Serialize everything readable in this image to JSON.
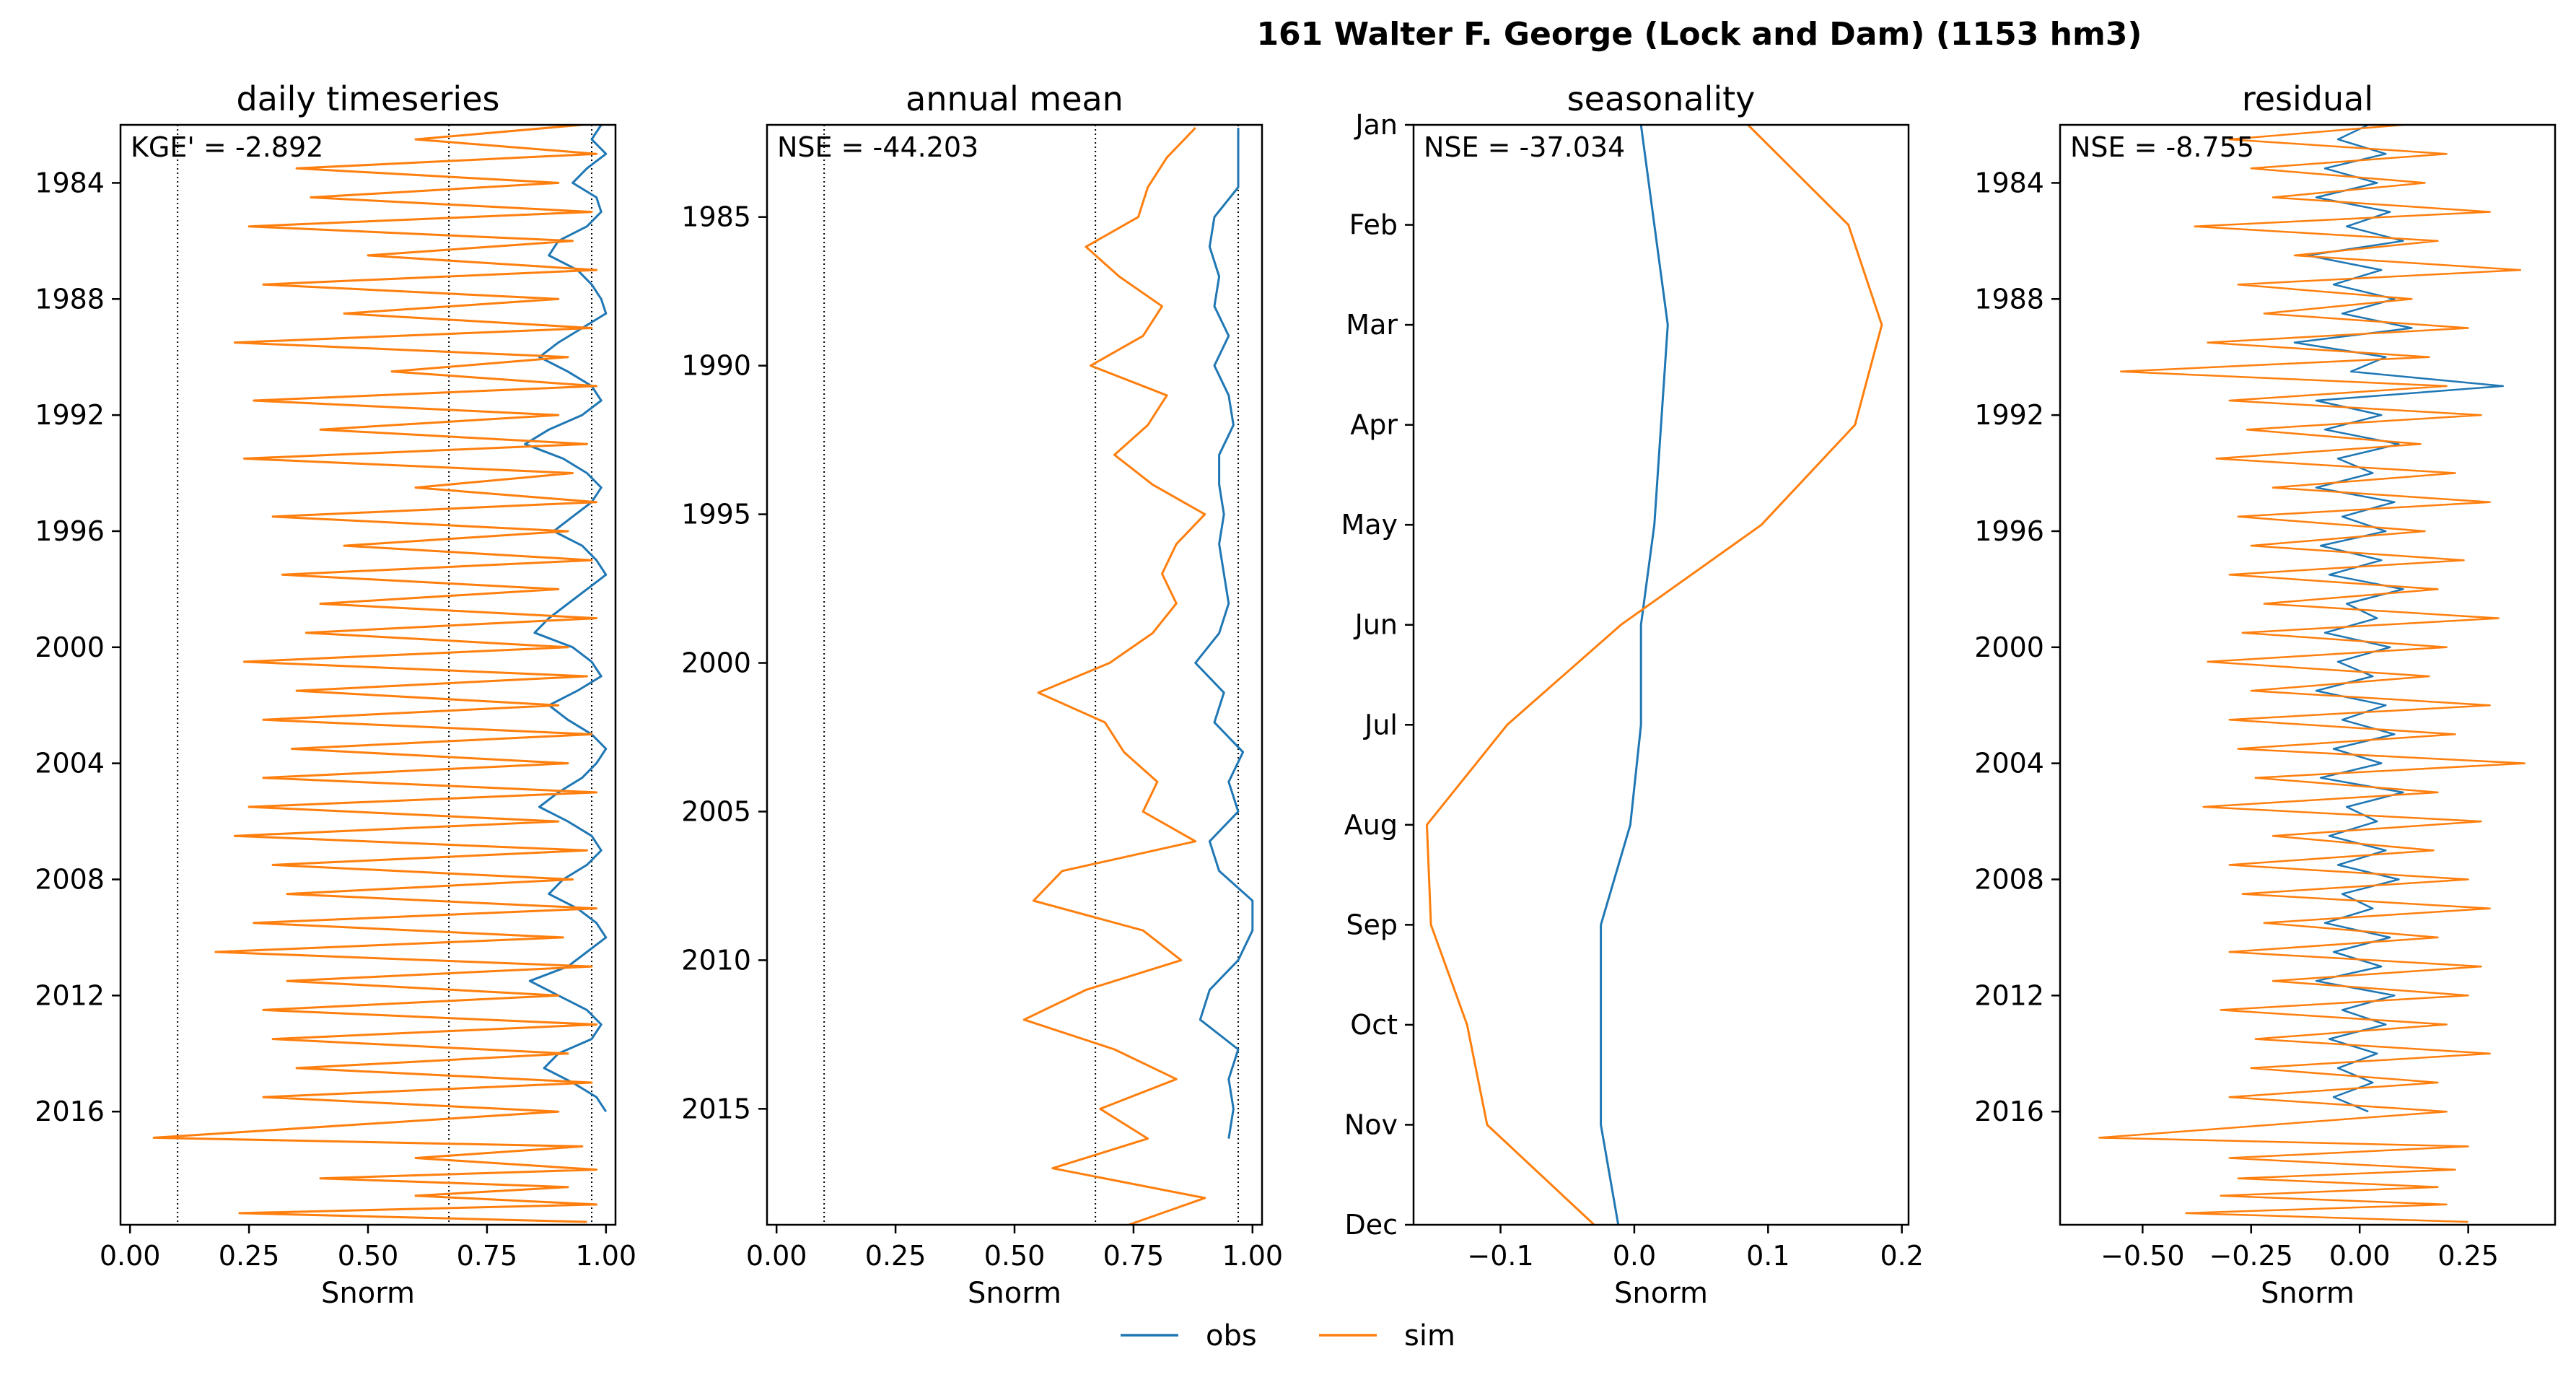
{
  "figure": {
    "title": "161  Walter F. George (Lock and  Dam) (1153 hm3)",
    "legend": {
      "placement": "bottom-center",
      "entries": [
        {
          "name": "obs",
          "color": "#1f77b4"
        },
        {
          "name": "sim",
          "color": "#ff7f0e"
        }
      ]
    }
  },
  "chart_data": [
    {
      "type": "line",
      "title": "daily timeseries",
      "xlabel": "Snorm",
      "ylabel": "",
      "metric_label": "KGE' = -2.892",
      "xlim": [
        -0.02,
        1.02
      ],
      "xticks": [
        0.0,
        0.25,
        0.5,
        0.75,
        1.0
      ],
      "xtick_labels": [
        "0.00",
        "0.25",
        "0.50",
        "0.75",
        "1.00"
      ],
      "ylim": [
        2019.9,
        1982.0
      ],
      "yticks": [
        1984,
        1988,
        1992,
        1996,
        2000,
        2004,
        2008,
        2012,
        2016
      ],
      "ytick_labels": [
        "1984",
        "1988",
        "1992",
        "1996",
        "2000",
        "2004",
        "2008",
        "2012",
        "2016"
      ],
      "reference_lines_x": [
        0.1,
        0.67,
        0.97
      ],
      "series": [
        {
          "name": "obs",
          "color": "#1f77b4",
          "x": [
            0.99,
            0.97,
            1.0,
            0.96,
            0.93,
            0.98,
            0.99,
            0.96,
            0.9,
            0.88,
            0.94,
            0.97,
            0.99,
            1.0,
            0.95,
            0.9,
            0.86,
            0.92,
            0.97,
            0.99,
            0.95,
            0.88,
            0.83,
            0.91,
            0.96,
            0.99,
            0.97,
            0.93,
            0.89,
            0.95,
            0.98,
            1.0,
            0.96,
            0.92,
            0.88,
            0.85,
            0.93,
            0.97,
            0.99,
            0.94,
            0.88,
            0.92,
            0.97,
            1.0,
            0.98,
            0.95,
            0.9,
            0.86,
            0.92,
            0.97,
            0.99,
            0.96,
            0.91,
            0.88,
            0.94,
            0.98,
            1.0,
            0.96,
            0.92,
            0.84,
            0.9,
            0.96,
            0.99,
            0.97,
            0.9,
            0.87,
            0.93,
            0.98,
            1.0
          ],
          "y": [
            1982.0,
            1982.5,
            1983.0,
            1983.5,
            1984.0,
            1984.5,
            1985.0,
            1985.5,
            1986.0,
            1986.5,
            1987.0,
            1987.5,
            1988.0,
            1988.5,
            1989.0,
            1989.5,
            1990.0,
            1990.5,
            1991.0,
            1991.5,
            1992.0,
            1992.5,
            1993.0,
            1993.5,
            1994.0,
            1994.5,
            1995.0,
            1995.5,
            1996.0,
            1996.5,
            1997.0,
            1997.5,
            1998.0,
            1998.5,
            1999.0,
            1999.5,
            2000.0,
            2000.5,
            2001.0,
            2001.5,
            2002.0,
            2002.5,
            2003.0,
            2003.5,
            2004.0,
            2004.5,
            2005.0,
            2005.5,
            2006.0,
            2006.5,
            2007.0,
            2007.5,
            2008.0,
            2008.5,
            2009.0,
            2009.5,
            2010.0,
            2010.5,
            2011.0,
            2011.5,
            2012.0,
            2012.5,
            2013.0,
            2013.5,
            2014.0,
            2014.5,
            2015.0,
            2015.5,
            2016.0
          ]
        },
        {
          "name": "sim",
          "color": "#ff7f0e",
          "x": [
            0.95,
            0.6,
            0.98,
            0.35,
            0.9,
            0.38,
            0.97,
            0.25,
            0.93,
            0.5,
            0.98,
            0.28,
            0.9,
            0.45,
            0.97,
            0.22,
            0.92,
            0.55,
            0.98,
            0.26,
            0.9,
            0.4,
            0.96,
            0.24,
            0.93,
            0.6,
            0.98,
            0.3,
            0.92,
            0.45,
            0.97,
            0.32,
            0.9,
            0.4,
            0.98,
            0.37,
            0.92,
            0.24,
            0.96,
            0.35,
            0.9,
            0.28,
            0.97,
            0.34,
            0.92,
            0.28,
            0.98,
            0.25,
            0.9,
            0.22,
            0.96,
            0.3,
            0.93,
            0.33,
            0.98,
            0.26,
            0.91,
            0.18,
            0.97,
            0.33,
            0.9,
            0.28,
            0.98,
            0.3,
            0.92,
            0.35,
            0.97,
            0.28,
            0.9,
            0.05,
            0.95,
            0.6,
            0.98,
            0.4,
            0.92,
            0.6,
            0.98,
            0.23,
            0.96
          ],
          "y": [
            1982.0,
            1982.5,
            1983.0,
            1983.5,
            1984.0,
            1984.5,
            1985.0,
            1985.5,
            1986.0,
            1986.5,
            1987.0,
            1987.5,
            1988.0,
            1988.5,
            1989.0,
            1989.5,
            1990.0,
            1990.5,
            1991.0,
            1991.5,
            1992.0,
            1992.5,
            1993.0,
            1993.5,
            1994.0,
            1994.5,
            1995.0,
            1995.5,
            1996.0,
            1996.5,
            1997.0,
            1997.5,
            1998.0,
            1998.5,
            1999.0,
            1999.5,
            2000.0,
            2000.5,
            2001.0,
            2001.5,
            2002.0,
            2002.5,
            2003.0,
            2003.5,
            2004.0,
            2004.5,
            2005.0,
            2005.5,
            2006.0,
            2006.5,
            2007.0,
            2007.5,
            2008.0,
            2008.5,
            2009.0,
            2009.5,
            2010.0,
            2010.5,
            2011.0,
            2011.5,
            2012.0,
            2012.5,
            2013.0,
            2013.5,
            2014.0,
            2014.5,
            2015.0,
            2015.5,
            2016.0,
            2016.9,
            2017.2,
            2017.6,
            2018.0,
            2018.3,
            2018.6,
            2018.9,
            2019.2,
            2019.5,
            2019.8
          ]
        }
      ]
    },
    {
      "type": "line",
      "title": "annual mean",
      "xlabel": "Snorm",
      "ylabel": "",
      "metric_label": "NSE = -44.203",
      "xlim": [
        -0.02,
        1.02
      ],
      "xticks": [
        0.0,
        0.25,
        0.5,
        0.75,
        1.0
      ],
      "xtick_labels": [
        "0.00",
        "0.25",
        "0.50",
        "0.75",
        "1.00"
      ],
      "ylim": [
        2018.9,
        1981.9
      ],
      "yticks": [
        1985,
        1990,
        1995,
        2000,
        2005,
        2010,
        2015
      ],
      "ytick_labels": [
        "1985",
        "1990",
        "1995",
        "2000",
        "2005",
        "2010",
        "2015"
      ],
      "reference_lines_x": [
        0.1,
        0.67,
        0.97
      ],
      "series": [
        {
          "name": "obs",
          "color": "#1f77b4",
          "x": [
            0.97,
            0.97,
            0.97,
            0.92,
            0.91,
            0.93,
            0.92,
            0.95,
            0.92,
            0.95,
            0.96,
            0.93,
            0.93,
            0.94,
            0.93,
            0.94,
            0.95,
            0.93,
            0.88,
            0.94,
            0.92,
            0.98,
            0.95,
            0.97,
            0.91,
            0.93,
            1.0,
            1.0,
            0.97,
            0.91,
            0.89,
            0.97,
            0.95,
            0.96,
            0.95
          ],
          "y": [
            1982,
            1983,
            1984,
            1985,
            1986,
            1987,
            1988,
            1989,
            1990,
            1991,
            1992,
            1993,
            1994,
            1995,
            1996,
            1997,
            1998,
            1999,
            2000,
            2001,
            2002,
            2003,
            2004,
            2005,
            2006,
            2007,
            2008,
            2009,
            2010,
            2011,
            2012,
            2013,
            2014,
            2015,
            2016
          ]
        },
        {
          "name": "sim",
          "color": "#ff7f0e",
          "x": [
            0.88,
            0.82,
            0.78,
            0.76,
            0.65,
            0.72,
            0.81,
            0.77,
            0.66,
            0.82,
            0.78,
            0.71,
            0.79,
            0.9,
            0.84,
            0.81,
            0.84,
            0.79,
            0.7,
            0.55,
            0.69,
            0.73,
            0.8,
            0.77,
            0.88,
            0.6,
            0.54,
            0.77,
            0.85,
            0.65,
            0.52,
            0.71,
            0.84,
            0.68,
            0.78,
            0.58,
            0.9,
            0.74
          ],
          "y": [
            1982,
            1983,
            1984,
            1985,
            1986,
            1987,
            1988,
            1989,
            1990,
            1991,
            1992,
            1993,
            1994,
            1995,
            1996,
            1997,
            1998,
            1999,
            2000,
            2001,
            2002,
            2003,
            2004,
            2005,
            2006,
            2007,
            2008,
            2009,
            2010,
            2011,
            2012,
            2013,
            2014,
            2015,
            2016,
            2017,
            2018,
            2018.9
          ]
        }
      ]
    },
    {
      "type": "line",
      "title": "seasonality",
      "xlabel": "Snorm",
      "ylabel": "",
      "metric_label": "NSE = -37.034",
      "xlim": [
        -0.165,
        0.205
      ],
      "xticks": [
        -0.1,
        0.0,
        0.1,
        0.2
      ],
      "xtick_labels": [
        "−0.1",
        "0.0",
        "0.1",
        "0.2"
      ],
      "ylim": [
        12,
        1
      ],
      "yticks": [
        1,
        2,
        3,
        4,
        5,
        6,
        7,
        8,
        9,
        10,
        11,
        12
      ],
      "ytick_labels": [
        "Jan",
        "Feb",
        "Mar",
        "Apr",
        "May",
        "Jun",
        "Jul",
        "Aug",
        "Sep",
        "Oct",
        "Nov",
        "Dec"
      ],
      "series": [
        {
          "name": "obs",
          "color": "#1f77b4",
          "x": [
            0.005,
            0.015,
            0.025,
            0.02,
            0.015,
            0.005,
            0.005,
            -0.003,
            -0.025,
            -0.025,
            -0.025,
            -0.012
          ],
          "y": [
            1,
            2,
            3,
            4,
            5,
            6,
            7,
            8,
            9,
            10,
            11,
            12
          ]
        },
        {
          "name": "sim",
          "color": "#ff7f0e",
          "x": [
            0.085,
            0.16,
            0.185,
            0.165,
            0.095,
            -0.01,
            -0.095,
            -0.155,
            -0.152,
            -0.125,
            -0.11,
            -0.03
          ],
          "y": [
            1,
            2,
            3,
            4,
            5,
            6,
            7,
            8,
            9,
            10,
            11,
            12
          ]
        }
      ]
    },
    {
      "type": "line",
      "title": "residual",
      "xlabel": "Snorm",
      "ylabel": "",
      "metric_label": "NSE = -8.755",
      "xlim": [
        -0.69,
        0.45
      ],
      "xticks": [
        -0.5,
        -0.25,
        0.0,
        0.25
      ],
      "xtick_labels": [
        "−0.50",
        "−0.25",
        "0.00",
        "0.25"
      ],
      "ylim": [
        2019.9,
        1982.0
      ],
      "yticks": [
        1984,
        1988,
        1992,
        1996,
        2000,
        2004,
        2008,
        2012,
        2016
      ],
      "ytick_labels": [
        "1984",
        "1988",
        "1992",
        "1996",
        "2000",
        "2004",
        "2008",
        "2012",
        "2016"
      ],
      "series": [
        {
          "name": "obs",
          "color": "#1f77b4",
          "x": [
            0.02,
            -0.05,
            0.06,
            -0.08,
            0.04,
            -0.1,
            0.07,
            -0.03,
            0.1,
            -0.12,
            0.05,
            -0.06,
            0.08,
            -0.04,
            0.12,
            -0.15,
            0.06,
            -0.02,
            0.33,
            -0.1,
            0.05,
            -0.08,
            0.09,
            -0.05,
            0.03,
            -0.1,
            0.08,
            -0.04,
            0.06,
            -0.09,
            0.05,
            -0.07,
            0.1,
            -0.03,
            0.04,
            -0.08,
            0.07,
            -0.05,
            0.03,
            -0.1,
            0.06,
            -0.04,
            0.08,
            -0.06,
            0.05,
            -0.09,
            0.1,
            -0.03,
            0.04,
            -0.07,
            0.06,
            -0.05,
            0.09,
            -0.04,
            0.03,
            -0.08,
            0.07,
            -0.06,
            0.05,
            -0.1,
            0.08,
            -0.04,
            0.06,
            -0.07,
            0.04,
            -0.05,
            0.03,
            -0.06,
            0.02
          ],
          "y": [
            1982.0,
            1982.5,
            1983.0,
            1983.5,
            1984.0,
            1984.5,
            1985.0,
            1985.5,
            1986.0,
            1986.5,
            1987.0,
            1987.5,
            1988.0,
            1988.5,
            1989.0,
            1989.5,
            1990.0,
            1990.5,
            1991.0,
            1991.5,
            1992.0,
            1992.5,
            1993.0,
            1993.5,
            1994.0,
            1994.5,
            1995.0,
            1995.5,
            1996.0,
            1996.5,
            1997.0,
            1997.5,
            1998.0,
            1998.5,
            1999.0,
            1999.5,
            2000.0,
            2000.5,
            2001.0,
            2001.5,
            2002.0,
            2002.5,
            2003.0,
            2003.5,
            2004.0,
            2004.5,
            2005.0,
            2005.5,
            2006.0,
            2006.5,
            2007.0,
            2007.5,
            2008.0,
            2008.5,
            2009.0,
            2009.5,
            2010.0,
            2010.5,
            2011.0,
            2011.5,
            2012.0,
            2012.5,
            2013.0,
            2013.5,
            2014.0,
            2014.5,
            2015.0,
            2015.5,
            2016.0
          ]
        },
        {
          "name": "sim",
          "color": "#ff7f0e",
          "x": [
            0.1,
            -0.3,
            0.2,
            -0.25,
            0.15,
            -0.2,
            0.3,
            -0.38,
            0.18,
            -0.15,
            0.37,
            -0.28,
            0.12,
            -0.22,
            0.25,
            -0.35,
            0.16,
            -0.55,
            0.2,
            -0.3,
            0.28,
            -0.26,
            0.14,
            -0.33,
            0.22,
            -0.2,
            0.3,
            -0.28,
            0.15,
            -0.25,
            0.24,
            -0.3,
            0.18,
            -0.22,
            0.32,
            -0.27,
            0.2,
            -0.35,
            0.16,
            -0.25,
            0.3,
            -0.3,
            0.22,
            -0.28,
            0.38,
            -0.24,
            0.18,
            -0.36,
            0.28,
            -0.2,
            0.17,
            -0.3,
            0.25,
            -0.27,
            0.3,
            -0.22,
            0.18,
            -0.3,
            0.28,
            -0.2,
            0.25,
            -0.32,
            0.2,
            -0.24,
            0.3,
            -0.25,
            0.18,
            -0.3,
            0.2,
            -0.6,
            0.25,
            -0.3,
            0.22,
            -0.28,
            0.18,
            -0.32,
            0.2,
            -0.4,
            0.25
          ],
          "y": [
            1982.0,
            1982.5,
            1983.0,
            1983.5,
            1984.0,
            1984.5,
            1985.0,
            1985.5,
            1986.0,
            1986.5,
            1987.0,
            1987.5,
            1988.0,
            1988.5,
            1989.0,
            1989.5,
            1990.0,
            1990.5,
            1991.0,
            1991.5,
            1992.0,
            1992.5,
            1993.0,
            1993.5,
            1994.0,
            1994.5,
            1995.0,
            1995.5,
            1996.0,
            1996.5,
            1997.0,
            1997.5,
            1998.0,
            1998.5,
            1999.0,
            1999.5,
            2000.0,
            2000.5,
            2001.0,
            2001.5,
            2002.0,
            2002.5,
            2003.0,
            2003.5,
            2004.0,
            2004.5,
            2005.0,
            2005.5,
            2006.0,
            2006.5,
            2007.0,
            2007.5,
            2008.0,
            2008.5,
            2009.0,
            2009.5,
            2010.0,
            2010.5,
            2011.0,
            2011.5,
            2012.0,
            2012.5,
            2013.0,
            2013.5,
            2014.0,
            2014.5,
            2015.0,
            2015.5,
            2016.0,
            2016.9,
            2017.2,
            2017.6,
            2018.0,
            2018.3,
            2018.6,
            2018.9,
            2019.2,
            2019.5,
            2019.8
          ]
        }
      ]
    }
  ]
}
